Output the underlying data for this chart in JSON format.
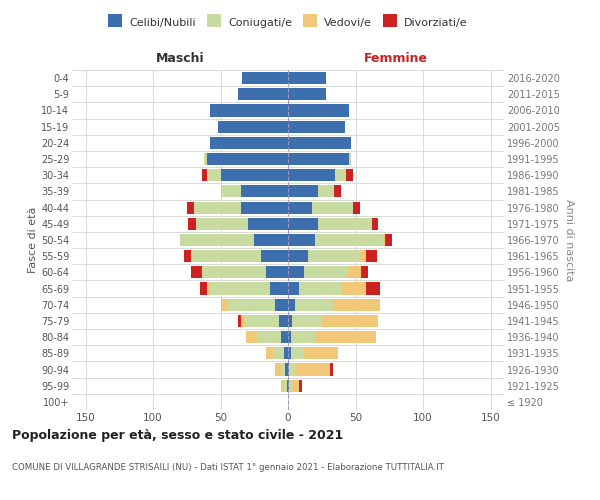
{
  "age_groups": [
    "100+",
    "95-99",
    "90-94",
    "85-89",
    "80-84",
    "75-79",
    "70-74",
    "65-69",
    "60-64",
    "55-59",
    "50-54",
    "45-49",
    "40-44",
    "35-39",
    "30-34",
    "25-29",
    "20-24",
    "15-19",
    "10-14",
    "5-9",
    "0-4"
  ],
  "birth_years": [
    "≤ 1920",
    "1921-1925",
    "1926-1930",
    "1931-1935",
    "1936-1940",
    "1941-1945",
    "1946-1950",
    "1951-1955",
    "1956-1960",
    "1961-1965",
    "1966-1970",
    "1971-1975",
    "1976-1980",
    "1981-1985",
    "1986-1990",
    "1991-1995",
    "1996-2000",
    "2001-2005",
    "2006-2010",
    "2011-2015",
    "2016-2020"
  ],
  "male_celibe": [
    0,
    1,
    2,
    3,
    5,
    7,
    10,
    13,
    16,
    20,
    25,
    30,
    35,
    35,
    50,
    60,
    58,
    52,
    58,
    37,
    34
  ],
  "male_coniugato": [
    0,
    2,
    3,
    8,
    18,
    25,
    35,
    45,
    48,
    52,
    55,
    38,
    35,
    15,
    10,
    2,
    0,
    0,
    0,
    0,
    0
  ],
  "male_vedovo": [
    0,
    2,
    5,
    5,
    8,
    3,
    5,
    2,
    0,
    0,
    0,
    0,
    0,
    0,
    0,
    0,
    0,
    0,
    0,
    0,
    0
  ],
  "male_divorziato": [
    0,
    0,
    0,
    0,
    0,
    2,
    0,
    5,
    8,
    5,
    0,
    6,
    5,
    0,
    4,
    0,
    0,
    0,
    0,
    0,
    0
  ],
  "fem_nubile": [
    0,
    1,
    1,
    2,
    2,
    3,
    5,
    8,
    12,
    15,
    20,
    22,
    18,
    22,
    35,
    45,
    47,
    42,
    45,
    28,
    28
  ],
  "fem_coniugata": [
    0,
    2,
    5,
    10,
    18,
    22,
    28,
    32,
    32,
    38,
    50,
    40,
    30,
    12,
    8,
    2,
    0,
    0,
    0,
    0,
    0
  ],
  "fem_vedova": [
    0,
    5,
    25,
    25,
    45,
    42,
    35,
    18,
    10,
    5,
    2,
    0,
    0,
    0,
    0,
    0,
    0,
    0,
    0,
    0,
    0
  ],
  "fem_divorziata": [
    0,
    2,
    2,
    0,
    0,
    0,
    0,
    10,
    5,
    8,
    5,
    5,
    5,
    5,
    5,
    0,
    0,
    0,
    0,
    0,
    0
  ],
  "colors": {
    "celibe": "#3d6fae",
    "coniugato": "#c8dba0",
    "vedovo": "#f0c878",
    "divorziato": "#cc2222"
  },
  "xlim": 160,
  "title": "Popolazione per età, sesso e stato civile - 2021",
  "subtitle": "COMUNE DI VILLAGRANDE STRISAILI (NU) - Dati ISTAT 1° gennaio 2021 - Elaborazione TUTTITALIA.IT",
  "xlabel_left": "Maschi",
  "xlabel_right": "Femmine",
  "ylabel": "Fasce di età",
  "ylabel_right": "Anni di nascita",
  "legend_labels": [
    "Celibi/Nubili",
    "Coniugati/e",
    "Vedovi/e",
    "Divorziati/e"
  ],
  "background_color": "#ffffff",
  "grid_color": "#cccccc"
}
